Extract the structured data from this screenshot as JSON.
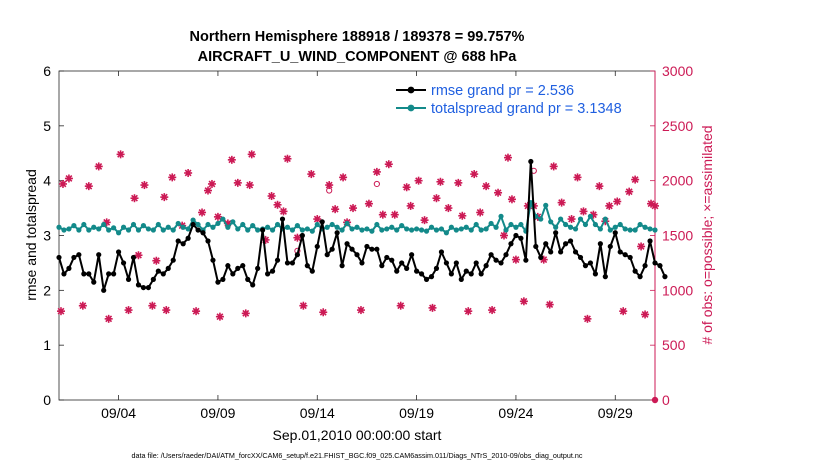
{
  "colors": {
    "rmse": "#000000",
    "spread": "#138a8a",
    "obs": "#cc1a55",
    "legend_text": "#1f5fe0"
  },
  "chart_data": {
    "type": "line",
    "title": "Northern Hemisphere 188918 / 189378 = 99.757%",
    "subtitle": "AIRCRAFT_U_WIND_COMPONENT @ 688 hPa",
    "xlabel": "Sep.01,2010 00:00:00 start",
    "ylabel": "rmse and totalspread",
    "ylabel_right": "# of obs: o=possible; ×=assimilated",
    "footnote": "data file: /Users/raeder/DAI/ATM_forcXX/CAM6_setup/f.e21.FHIST_BGC.f09_025.CAM6assim.011/Diags_NTrS_2010-09/obs_diag_output.nc",
    "xlim": [
      1.0,
      31.0
    ],
    "ylim": [
      0,
      6
    ],
    "ylim_right": [
      0,
      3000
    ],
    "yticks": [
      "0",
      "1",
      "2",
      "3",
      "4",
      "5",
      "6"
    ],
    "yticks_right": [
      "0",
      "500",
      "1000",
      "1500",
      "2000",
      "2500",
      "3000"
    ],
    "xtick_values": [
      4,
      9,
      14,
      19,
      24,
      29
    ],
    "xtick_labels": [
      "09/04",
      "09/09",
      "09/14",
      "09/19",
      "09/24",
      "09/29"
    ],
    "legend": [
      "rmse grand pr = 2.536",
      "totalspread grand pr = 3.1348"
    ],
    "series": [
      {
        "name": "rmse grand pr = 2.536",
        "x_start": 1.0,
        "x_step": 0.25,
        "values": [
          2.6,
          2.3,
          2.4,
          2.6,
          2.65,
          2.3,
          2.3,
          2.15,
          2.65,
          2.0,
          2.3,
          2.3,
          2.7,
          2.5,
          2.2,
          2.6,
          2.1,
          2.05,
          2.05,
          2.2,
          2.35,
          2.3,
          2.4,
          2.55,
          2.9,
          2.85,
          2.95,
          3.2,
          3.1,
          3.05,
          2.9,
          2.55,
          2.15,
          2.2,
          2.45,
          2.3,
          2.4,
          2.45,
          2.2,
          2.1,
          2.4,
          3.1,
          2.3,
          2.35,
          2.55,
          3.3,
          2.5,
          2.5,
          2.65,
          3.0,
          2.45,
          2.35,
          2.8,
          3.25,
          2.65,
          2.75,
          3.05,
          2.45,
          2.85,
          2.75,
          2.65,
          2.5,
          2.8,
          2.75,
          2.75,
          2.45,
          2.6,
          2.55,
          2.35,
          2.5,
          2.4,
          2.65,
          2.35,
          2.3,
          2.2,
          2.25,
          2.4,
          2.7,
          2.5,
          2.3,
          2.5,
          2.2,
          2.35,
          2.3,
          2.5,
          2.3,
          2.45,
          2.65,
          2.55,
          2.5,
          2.65,
          2.85,
          3.0,
          2.95,
          2.55,
          4.35,
          2.8,
          2.6,
          2.85,
          2.7,
          3.05,
          2.7,
          2.85,
          2.9,
          2.7,
          2.6,
          2.45,
          2.5,
          2.3,
          2.85,
          2.25,
          2.8,
          3.05,
          2.7,
          2.65,
          2.6,
          2.35,
          2.25,
          2.45,
          2.9,
          2.5,
          2.45,
          2.25
        ]
      },
      {
        "name": "totalspread grand pr = 3.1348",
        "x_start": 1.0,
        "x_step": 0.25,
        "values": [
          3.15,
          3.1,
          3.12,
          3.18,
          3.1,
          3.2,
          3.1,
          3.15,
          3.12,
          3.2,
          3.1,
          3.14,
          3.05,
          3.15,
          3.1,
          3.2,
          3.1,
          3.18,
          3.12,
          3.1,
          3.2,
          3.1,
          3.15,
          3.1,
          3.22,
          3.15,
          3.12,
          3.28,
          3.2,
          3.1,
          3.2,
          3.15,
          3.22,
          3.3,
          3.15,
          3.25,
          3.12,
          3.2,
          3.1,
          3.18,
          3.1,
          3.12,
          3.15,
          3.1,
          3.2,
          3.12,
          3.15,
          3.1,
          3.18,
          3.1,
          3.12,
          3.08,
          3.2,
          3.12,
          3.15,
          3.2,
          3.15,
          3.1,
          3.22,
          3.12,
          3.15,
          3.1,
          3.12,
          3.08,
          3.2,
          3.1,
          3.12,
          3.15,
          3.1,
          3.18,
          3.12,
          3.1,
          3.12,
          3.1,
          3.08,
          3.15,
          3.1,
          3.12,
          3.05,
          3.15,
          3.1,
          3.12,
          3.15,
          3.1,
          3.2,
          3.1,
          3.12,
          3.22,
          3.15,
          3.35,
          3.1,
          3.2,
          3.15,
          3.2,
          3.08,
          3.6,
          3.35,
          3.3,
          3.55,
          3.25,
          3.15,
          3.3,
          3.2,
          3.15,
          3.12,
          3.3,
          3.2,
          3.35,
          3.2,
          3.12,
          3.3,
          3.1,
          3.15,
          3.2,
          3.12,
          3.1,
          3.1,
          3.2,
          3.15,
          3.12,
          3.1
        ]
      },
      {
        "name": "# of obs assimilated",
        "points": [
          [
            1.1,
            810
          ],
          [
            1.2,
            1970
          ],
          [
            1.5,
            2020
          ],
          [
            2.2,
            860
          ],
          [
            2.5,
            1950
          ],
          [
            3.0,
            2130
          ],
          [
            3.4,
            1620
          ],
          [
            3.5,
            740
          ],
          [
            4.1,
            2240
          ],
          [
            4.5,
            820
          ],
          [
            4.8,
            1840
          ],
          [
            5.0,
            1320
          ],
          [
            5.3,
            1960
          ],
          [
            5.7,
            860
          ],
          [
            5.9,
            1270
          ],
          [
            6.3,
            1850
          ],
          [
            6.4,
            820
          ],
          [
            6.7,
            2030
          ],
          [
            7.2,
            1590
          ],
          [
            7.5,
            2070
          ],
          [
            7.9,
            810
          ],
          [
            8.2,
            1710
          ],
          [
            8.5,
            1910
          ],
          [
            8.7,
            1970
          ],
          [
            9.0,
            1670
          ],
          [
            9.1,
            760
          ],
          [
            9.5,
            1610
          ],
          [
            9.7,
            2190
          ],
          [
            10.0,
            1980
          ],
          [
            10.4,
            790
          ],
          [
            10.6,
            1960
          ],
          [
            10.7,
            2240
          ],
          [
            11.4,
            1460
          ],
          [
            11.7,
            1860
          ],
          [
            12.0,
            1780
          ],
          [
            12.3,
            1720
          ],
          [
            12.5,
            2200
          ],
          [
            13.0,
            1480
          ],
          [
            13.3,
            860
          ],
          [
            13.7,
            2060
          ],
          [
            14.0,
            1650
          ],
          [
            14.3,
            800
          ],
          [
            14.6,
            1960
          ],
          [
            14.9,
            1740
          ],
          [
            15.3,
            2030
          ],
          [
            15.5,
            1620
          ],
          [
            15.8,
            1750
          ],
          [
            16.2,
            820
          ],
          [
            16.6,
            1790
          ],
          [
            17.0,
            2080
          ],
          [
            17.3,
            1690
          ],
          [
            17.6,
            2150
          ],
          [
            17.9,
            1690
          ],
          [
            18.2,
            860
          ],
          [
            18.5,
            1940
          ],
          [
            18.7,
            1770
          ],
          [
            19.1,
            2000
          ],
          [
            19.4,
            1640
          ],
          [
            19.8,
            840
          ],
          [
            20.0,
            1840
          ],
          [
            20.2,
            1990
          ],
          [
            20.6,
            1750
          ],
          [
            21.1,
            1980
          ],
          [
            21.3,
            1680
          ],
          [
            21.6,
            810
          ],
          [
            21.9,
            2060
          ],
          [
            22.2,
            1710
          ],
          [
            22.5,
            1950
          ],
          [
            22.8,
            820
          ],
          [
            23.1,
            1890
          ],
          [
            23.4,
            1500
          ],
          [
            23.6,
            2210
          ],
          [
            23.8,
            1830
          ],
          [
            24.0,
            1280
          ],
          [
            24.4,
            900
          ],
          [
            24.6,
            1770
          ],
          [
            24.9,
            1770
          ],
          [
            25.1,
            1670
          ],
          [
            25.4,
            1280
          ],
          [
            25.7,
            870
          ],
          [
            25.9,
            2130
          ],
          [
            26.3,
            1800
          ],
          [
            26.8,
            1650
          ],
          [
            27.1,
            2030
          ],
          [
            27.4,
            1720
          ],
          [
            27.6,
            740
          ],
          [
            27.9,
            1690
          ],
          [
            28.2,
            1950
          ],
          [
            28.5,
            1630
          ],
          [
            28.7,
            1770
          ],
          [
            29.1,
            1810
          ],
          [
            29.4,
            810
          ],
          [
            29.7,
            1900
          ],
          [
            30.0,
            2010
          ],
          [
            30.3,
            1400
          ],
          [
            30.5,
            780
          ],
          [
            30.8,
            1790
          ],
          [
            31.0,
            1770
          ]
        ]
      },
      {
        "name": "# of obs possible",
        "points": [
          [
            13.0,
            1360
          ],
          [
            14.6,
            1910
          ],
          [
            17.0,
            1970
          ],
          [
            24.9,
            2090
          ]
        ]
      }
    ]
  }
}
